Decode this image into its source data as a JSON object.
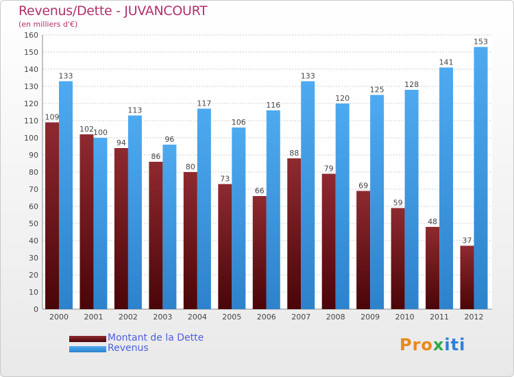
{
  "chart_data": {
    "type": "bar",
    "title": "Revenus/Dette - JUVANCOURT",
    "subtitle": "(en milliers d'€)",
    "categories": [
      "2000",
      "2001",
      "2002",
      "2003",
      "2004",
      "2005",
      "2006",
      "2007",
      "2008",
      "2009",
      "2010",
      "2011",
      "2012"
    ],
    "series": [
      {
        "name": "Montant de la Dette",
        "color": "#7a1a1e",
        "values": [
          109,
          102,
          94,
          86,
          80,
          73,
          66,
          88,
          79,
          69,
          59,
          48,
          37
        ]
      },
      {
        "name": "Revenus",
        "color": "#3d9be6",
        "values": [
          133,
          100,
          113,
          96,
          117,
          106,
          116,
          133,
          120,
          125,
          128,
          141,
          153
        ]
      }
    ],
    "ylim": [
      0,
      160
    ],
    "yticks": [
      0,
      10,
      20,
      30,
      40,
      50,
      60,
      70,
      80,
      90,
      100,
      110,
      120,
      130,
      140,
      150,
      160
    ],
    "grid": true,
    "legend": "bottom-left"
  },
  "logo": {
    "text": "Proxiti"
  }
}
